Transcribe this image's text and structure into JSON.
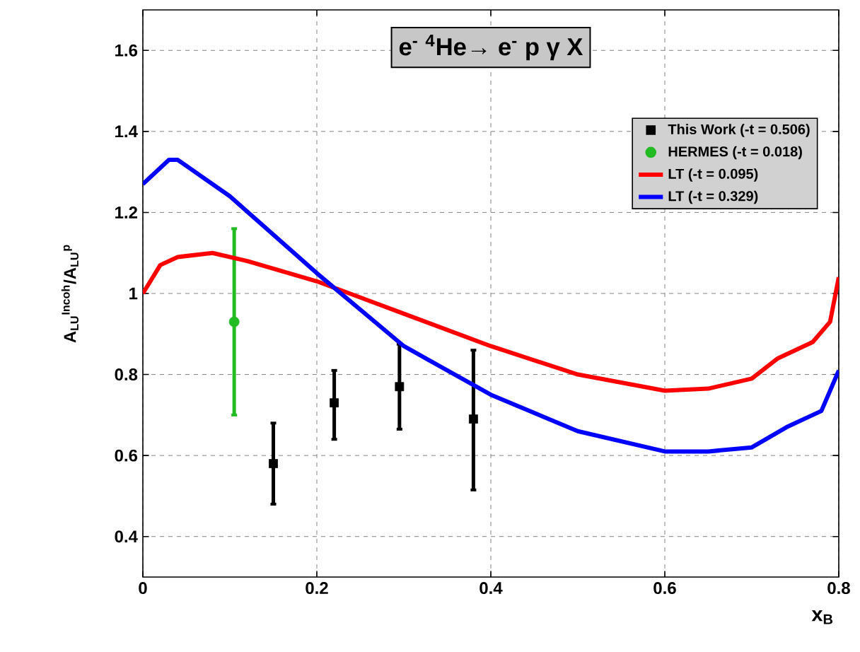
{
  "chart_data": {
    "type": "line",
    "title": "e$^{-}$ $^{4}$He→ e$^{-}$ p γ X",
    "xlabel": "x$_{B}$",
    "ylabel": "A$_{LU}$$^{Incoh}$/A$_{LU}$$^{p}$",
    "xlim": [
      0,
      0.8
    ],
    "ylim": [
      0.3,
      1.7
    ],
    "xticks": [
      0,
      0.2,
      0.4,
      0.6,
      0.8
    ],
    "yticks": [
      0.4,
      0.6,
      0.8,
      1,
      1.2,
      1.4,
      1.6
    ],
    "grid": true,
    "legend": "top right",
    "series": [
      {
        "name": "This Work (-t = 0.506)",
        "type": "scatter",
        "marker": "square",
        "color": "#000000",
        "x": [
          0.15,
          0.22,
          0.295,
          0.38
        ],
        "values": [
          0.58,
          0.73,
          0.77,
          0.69
        ],
        "errors": [
          [
            0.48,
            0.68
          ],
          [
            0.64,
            0.81
          ],
          [
            0.665,
            0.875
          ],
          [
            0.515,
            0.86
          ]
        ]
      },
      {
        "name": "HERMES (-t = 0.018)",
        "type": "scatter",
        "marker": "circle",
        "color": "#22bb22",
        "x": [
          0.105
        ],
        "values": [
          0.93
        ],
        "errors": [
          [
            0.7,
            1.16
          ]
        ]
      },
      {
        "name": "LT (-t = 0.095)",
        "color": "#ff0000",
        "x": [
          0,
          0.02,
          0.04,
          0.08,
          0.12,
          0.2,
          0.3,
          0.4,
          0.5,
          0.6,
          0.65,
          0.7,
          0.73,
          0.77,
          0.79,
          0.8
        ],
        "values": [
          1.0,
          1.07,
          1.09,
          1.1,
          1.08,
          1.03,
          0.95,
          0.87,
          0.8,
          0.76,
          0.765,
          0.79,
          0.84,
          0.88,
          0.93,
          1.04
        ]
      },
      {
        "name": "LT (-t = 0.329)",
        "color": "#0000ff",
        "x": [
          0,
          0.03,
          0.04,
          0.1,
          0.2,
          0.3,
          0.4,
          0.5,
          0.6,
          0.65,
          0.7,
          0.74,
          0.78,
          0.8
        ],
        "values": [
          1.27,
          1.33,
          1.33,
          1.24,
          1.05,
          0.87,
          0.75,
          0.66,
          0.61,
          0.61,
          0.62,
          0.67,
          0.71,
          0.81
        ]
      }
    ]
  }
}
